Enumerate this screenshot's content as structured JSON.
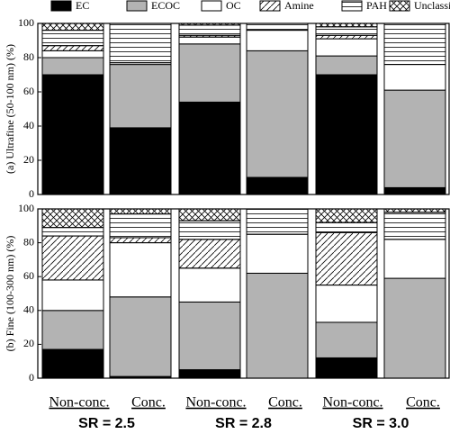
{
  "chart_data": [
    {
      "type": "bar",
      "stacked": true,
      "ylabel": "(a) Ultrafine (50-100 nm) (%)",
      "ylim": [
        0,
        100
      ],
      "yticks": [
        0,
        20,
        40,
        60,
        80,
        100
      ],
      "series": [
        {
          "name": "EC",
          "color": "#000000",
          "pattern": "solid",
          "values": [
            70,
            39,
            54,
            10,
            70,
            4
          ]
        },
        {
          "name": "ECOC",
          "color": "#b3b3b3",
          "pattern": "solid",
          "values": [
            10,
            37,
            34,
            74,
            11,
            57
          ]
        },
        {
          "name": "OC",
          "color": "#ffffff",
          "pattern": "solid",
          "values": [
            4,
            1,
            4,
            12,
            10,
            15
          ]
        },
        {
          "name": "Amine",
          "color": "#ffffff",
          "pattern": "diagonal",
          "values": [
            3,
            0,
            1,
            0,
            2,
            0
          ]
        },
        {
          "name": "PAH",
          "color": "#ffffff",
          "pattern": "horizontal",
          "values": [
            9,
            23,
            6,
            4,
            5,
            24
          ]
        },
        {
          "name": "Unclassified",
          "color": "#ffffff",
          "pattern": "cross",
          "values": [
            4,
            0,
            1,
            0,
            2,
            0
          ]
        }
      ]
    },
    {
      "type": "bar",
      "stacked": true,
      "ylabel": "(b) Fine (100-300 nm) (%)",
      "ylim": [
        0,
        100
      ],
      "yticks": [
        0,
        20,
        40,
        60,
        80,
        100
      ],
      "categories": [
        "Non-conc.",
        "Conc.",
        "Non-conc.",
        "Conc.",
        "Non-conc.",
        "Conc."
      ],
      "groups": [
        "SR = 2.5",
        "SR = 2.8",
        "SR = 3.0"
      ],
      "series": [
        {
          "color": "#000000",
          "pattern": "solid",
          "values": [
            17,
            1,
            5,
            0,
            12,
            0
          ]
        },
        {
          "color": "#b3b3b3",
          "pattern": "solid",
          "values": [
            23,
            47,
            40,
            62,
            21,
            59
          ]
        },
        {
          "color": "#ffffff",
          "pattern": "solid",
          "values": [
            18,
            32,
            20,
            23,
            22,
            23
          ]
        },
        {
          "color": "#ffffff",
          "pattern": "diagonal",
          "values": [
            26,
            3,
            17,
            0,
            31,
            0
          ]
        },
        {
          "color": "#ffffff",
          "pattern": "horizontal",
          "values": [
            5,
            14,
            11,
            15,
            6,
            16
          ]
        },
        {
          "color": "#ffffff",
          "pattern": "cross",
          "values": [
            11,
            3,
            7,
            0,
            8,
            2
          ]
        }
      ]
    }
  ]
}
